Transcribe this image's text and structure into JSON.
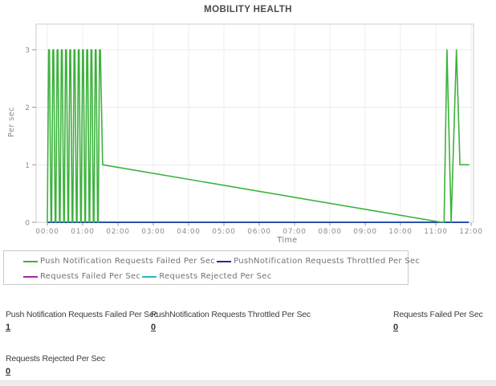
{
  "title": "MOBILITY HEALTH",
  "chart_data": {
    "type": "line",
    "title": "MOBILITY HEALTH",
    "xlabel": "Time",
    "ylabel": "Per sec",
    "x_unit": "minutes_after_00:00",
    "xlim": [
      0,
      720
    ],
    "ylim": [
      0,
      3
    ],
    "x_tick_labels": [
      "00:00",
      "01:00",
      "02:00",
      "03:00",
      "04:00",
      "05:00",
      "06:00",
      "07:00",
      "08:00",
      "09:00",
      "10:00",
      "11:00",
      "12:00"
    ],
    "y_ticks": [
      0,
      1,
      2,
      3
    ],
    "grid": true,
    "legend_position": "bottom",
    "series": [
      {
        "name": "Push Notification Requests Failed Per Sec",
        "color": "#3cb23c",
        "points": [
          [
            0,
            0
          ],
          [
            2.2,
            3
          ],
          [
            3.6,
            3
          ],
          [
            6.2,
            0
          ],
          [
            7.2,
            0
          ],
          [
            9.4,
            3
          ],
          [
            10.8,
            3
          ],
          [
            13.4,
            0
          ],
          [
            14.4,
            0
          ],
          [
            16.6,
            3
          ],
          [
            18,
            3
          ],
          [
            20.6,
            0
          ],
          [
            21.6,
            0
          ],
          [
            23.8,
            3
          ],
          [
            25.2,
            3
          ],
          [
            27.8,
            0
          ],
          [
            28.8,
            0
          ],
          [
            31,
            3
          ],
          [
            32.4,
            3
          ],
          [
            35,
            0
          ],
          [
            36,
            0
          ],
          [
            38.2,
            3
          ],
          [
            39.6,
            3
          ],
          [
            42.2,
            0
          ],
          [
            43.2,
            0
          ],
          [
            45.4,
            3
          ],
          [
            46.8,
            3
          ],
          [
            49.4,
            0
          ],
          [
            50.4,
            0
          ],
          [
            52.6,
            3
          ],
          [
            54,
            3
          ],
          [
            56.6,
            0
          ],
          [
            57.6,
            0
          ],
          [
            59.8,
            3
          ],
          [
            61.2,
            3
          ],
          [
            63.8,
            0
          ],
          [
            64.8,
            0
          ],
          [
            67,
            3
          ],
          [
            68.4,
            3
          ],
          [
            71,
            0
          ],
          [
            72,
            0
          ],
          [
            74.2,
            3
          ],
          [
            75.6,
            3
          ],
          [
            78.2,
            0
          ],
          [
            79.2,
            0
          ],
          [
            81.4,
            3
          ],
          [
            82.8,
            3
          ],
          [
            85.4,
            0
          ],
          [
            86.4,
            0
          ],
          [
            88.6,
            3
          ],
          [
            90,
            3
          ],
          [
            94,
            1
          ],
          [
            670,
            0
          ],
          [
            674,
            0
          ],
          [
            679,
            3
          ],
          [
            686,
            0
          ],
          [
            695,
            3
          ],
          [
            701,
            1
          ],
          [
            717,
            1
          ]
        ]
      },
      {
        "name": "PushNotification Requests Throttled Per Sec",
        "color": "#2929a3",
        "points": [
          [
            0,
            0
          ],
          [
            716,
            0
          ]
        ]
      },
      {
        "name": "Requests Failed Per Sec",
        "color": "#a625a6",
        "points": [
          [
            0,
            0
          ],
          [
            716,
            0
          ]
        ]
      },
      {
        "name": "Requests Rejected Per Sec",
        "color": "#29b6c5",
        "points": [
          [
            0,
            0
          ],
          [
            716,
            0
          ]
        ]
      }
    ]
  },
  "legend": {
    "items": [
      {
        "label": "Push Notification Requests Failed Per Sec",
        "color": "#3cb23c"
      },
      {
        "label": "PushNotification Requests Throttled Per Sec",
        "color": "#2929a3"
      },
      {
        "label": "Requests Failed Per Sec",
        "color": "#a625a6"
      },
      {
        "label": "Requests Rejected Per Sec",
        "color": "#29b6c5"
      }
    ]
  },
  "stats": {
    "items": [
      {
        "label": "Push Notification Requests Failed Per Sec",
        "value": "1"
      },
      {
        "label": "PushNotification Requests Throttled Per Sec",
        "value": "0"
      },
      {
        "label": "Requests Failed Per Sec",
        "value": "0"
      },
      {
        "label": "Requests Rejected Per Sec",
        "value": "0"
      }
    ]
  }
}
